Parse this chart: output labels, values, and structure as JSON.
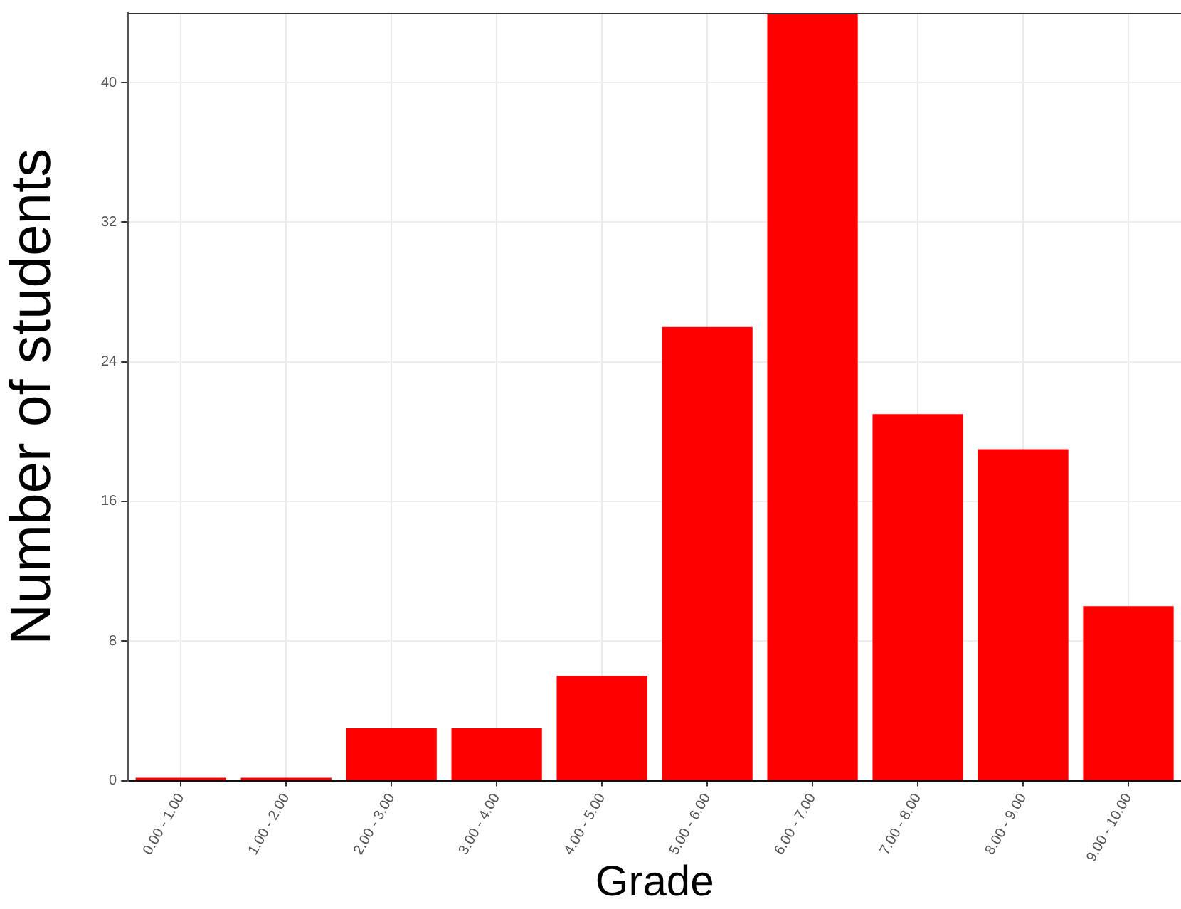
{
  "chart_data": {
    "type": "bar",
    "xlabel": "Grade",
    "ylabel": "Number of students",
    "categories": [
      "0.00 - 1.00",
      "1.00 - 2.00",
      "2.00 - 3.00",
      "3.00 - 4.00",
      "4.00 - 5.00",
      "5.00 - 6.00",
      "6.00 - 7.00",
      "7.00 - 8.00",
      "8.00 - 9.00",
      "9.00 - 10.00"
    ],
    "values": [
      0,
      0,
      3,
      3,
      6,
      26,
      44,
      21,
      19,
      10
    ],
    "color": "#ff0000",
    "ylim": [
      0,
      44
    ],
    "yticks": [
      0,
      8,
      16,
      24,
      32,
      40
    ],
    "grid": true,
    "legend": false
  }
}
